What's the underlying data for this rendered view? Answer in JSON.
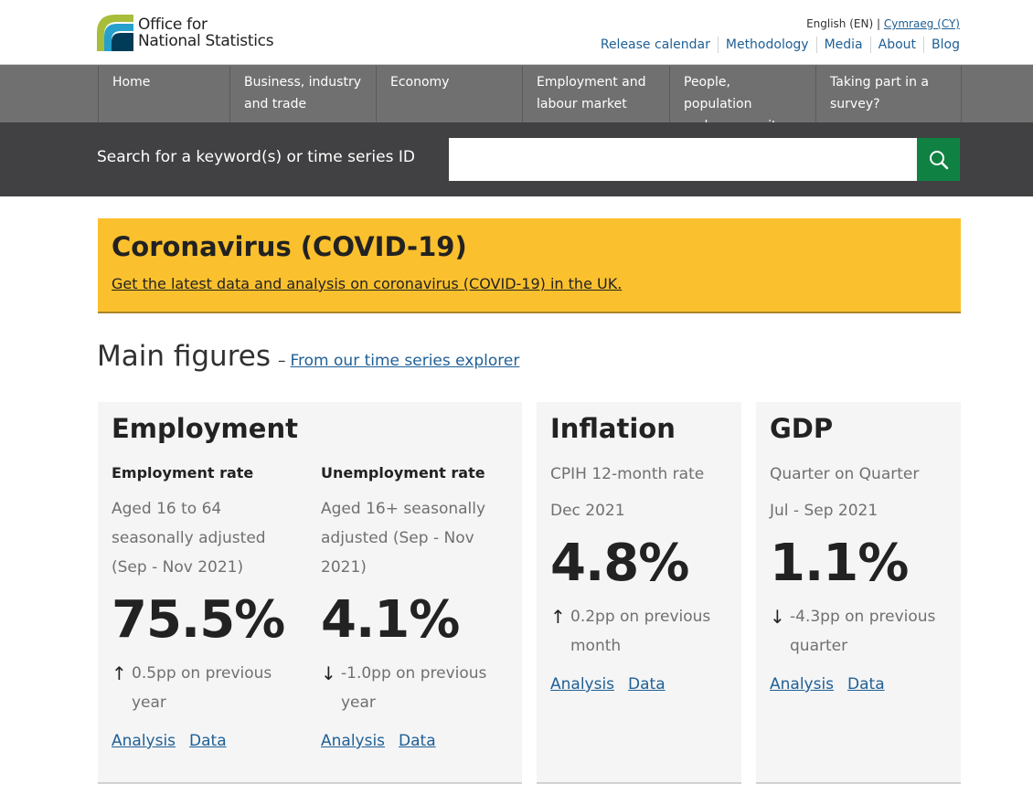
{
  "header": {
    "logo_line1": "Office for",
    "logo_line2": "National Statistics",
    "lang_current": "English (EN)",
    "lang_separator": "|",
    "lang_other": "Cymraeg (CY)",
    "links": [
      "Release calendar",
      "Methodology",
      "Media",
      "About",
      "Blog"
    ]
  },
  "nav": {
    "items": [
      {
        "line1": "Home",
        "line2": ""
      },
      {
        "line1": "Business, industry",
        "line2": "and trade"
      },
      {
        "line1": "Economy",
        "line2": ""
      },
      {
        "line1": "Employment and",
        "line2": "labour market"
      },
      {
        "line1": "People, population",
        "line2": "and community"
      },
      {
        "line1": "Taking part in a",
        "line2": "survey?"
      }
    ]
  },
  "search": {
    "label": "Search for a keyword(s) or time series ID",
    "value": "",
    "button_icon": "search-icon"
  },
  "covid": {
    "title": "Coronavirus (COVID-19)",
    "link": "Get the latest data and analysis on coronavirus (COVID-19) in the UK."
  },
  "main_figures": {
    "title": "Main figures",
    "dash": "–",
    "link": "From our time series explorer"
  },
  "employment": {
    "title": "Employment",
    "employment_rate": {
      "subtitle": "Employment rate",
      "desc_lines": [
        "Aged 16 to 64",
        "seasonally adjusted",
        "(Sep - Nov 2021)"
      ],
      "value": "75.5%",
      "arrow": "↑",
      "change_lines": [
        "0.5pp on previous",
        "year"
      ],
      "analysis": "Analysis",
      "data": "Data"
    },
    "unemployment_rate": {
      "subtitle": "Unemployment rate",
      "desc_lines": [
        "Aged 16+ seasonally",
        "adjusted (Sep - Nov",
        "2021)"
      ],
      "value": "4.1%",
      "arrow": "↓",
      "change_lines": [
        "-1.0pp on previous",
        "year"
      ],
      "analysis": "Analysis",
      "data": "Data"
    }
  },
  "inflation": {
    "title": "Inflation",
    "desc1": "CPIH 12-month rate",
    "desc2": "Dec 2021",
    "value": "4.8%",
    "arrow": "↑",
    "change_lines": [
      "0.2pp on previous",
      "month"
    ],
    "analysis": "Analysis",
    "data": "Data"
  },
  "gdp": {
    "title": "GDP",
    "desc1": "Quarter on Quarter",
    "desc2": "Jul - Sep 2021",
    "value": "1.1%",
    "arrow": "↓",
    "change_lines": [
      "-4.3pp on previous",
      "quarter"
    ],
    "analysis": "Analysis",
    "data": "Data"
  },
  "colors": {
    "accent_blue": "#206095",
    "covid_yellow": "#fbc02d",
    "search_green": "#0f8243",
    "nav_grey": "#707071",
    "search_bg": "#414042"
  }
}
